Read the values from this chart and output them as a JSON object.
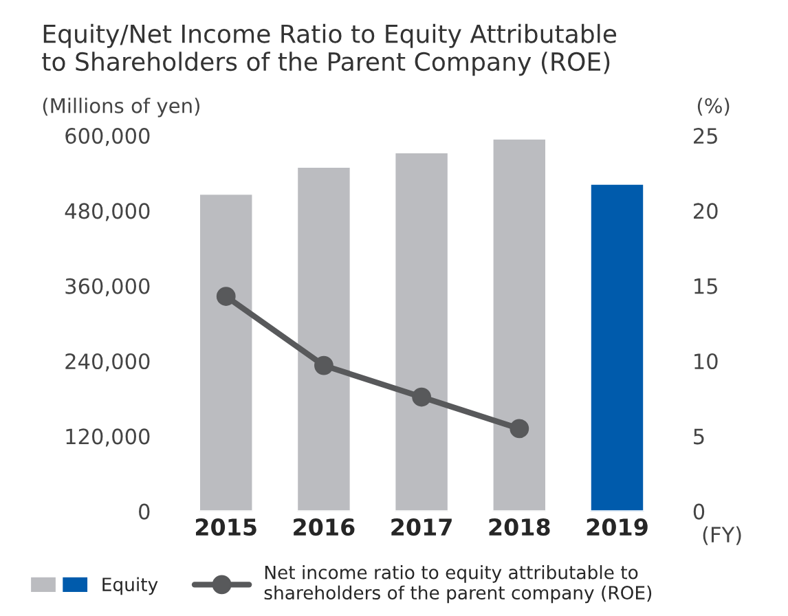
{
  "chart_data": {
    "type": "bar",
    "title": "Equity/Net Income Ratio to Equity Attributable\nto Shareholders of the Parent Company (ROE)",
    "ylabel": "(Millions of yen)",
    "y2label": "(%)",
    "xlabel": "(FY)",
    "categories": [
      "2015",
      "2016",
      "2017",
      "2018",
      "2019"
    ],
    "series": [
      {
        "name": "Equity",
        "colors": [
          "#bbbcc0",
          "#bbbcc0",
          "#bbbcc0",
          "#bbbcc0",
          "#005bac"
        ],
        "values": [
          507000,
          550000,
          573000,
          595000,
          523000
        ]
      },
      {
        "name": "Net income ratio to equity attributable to\nshareholders of the parent company (ROE)",
        "type": "line",
        "axis": "y2",
        "color": "#58595b",
        "marker": "circle",
        "values": [
          14.3,
          9.7,
          7.6,
          5.5,
          null
        ]
      }
    ],
    "ylim": [
      0,
      600000
    ],
    "yticks": [
      {
        "value": 0,
        "label": "0"
      },
      {
        "value": 120000,
        "label": "120,000"
      },
      {
        "value": 240000,
        "label": "240,000"
      },
      {
        "value": 360000,
        "label": "360,000"
      },
      {
        "value": 480000,
        "label": "480,000"
      },
      {
        "value": 600000,
        "label": "600,000"
      }
    ],
    "y2lim": [
      0,
      25
    ],
    "y2ticks": [
      0,
      5,
      10,
      15,
      20,
      25
    ],
    "grid": false,
    "legend": "bottom"
  }
}
